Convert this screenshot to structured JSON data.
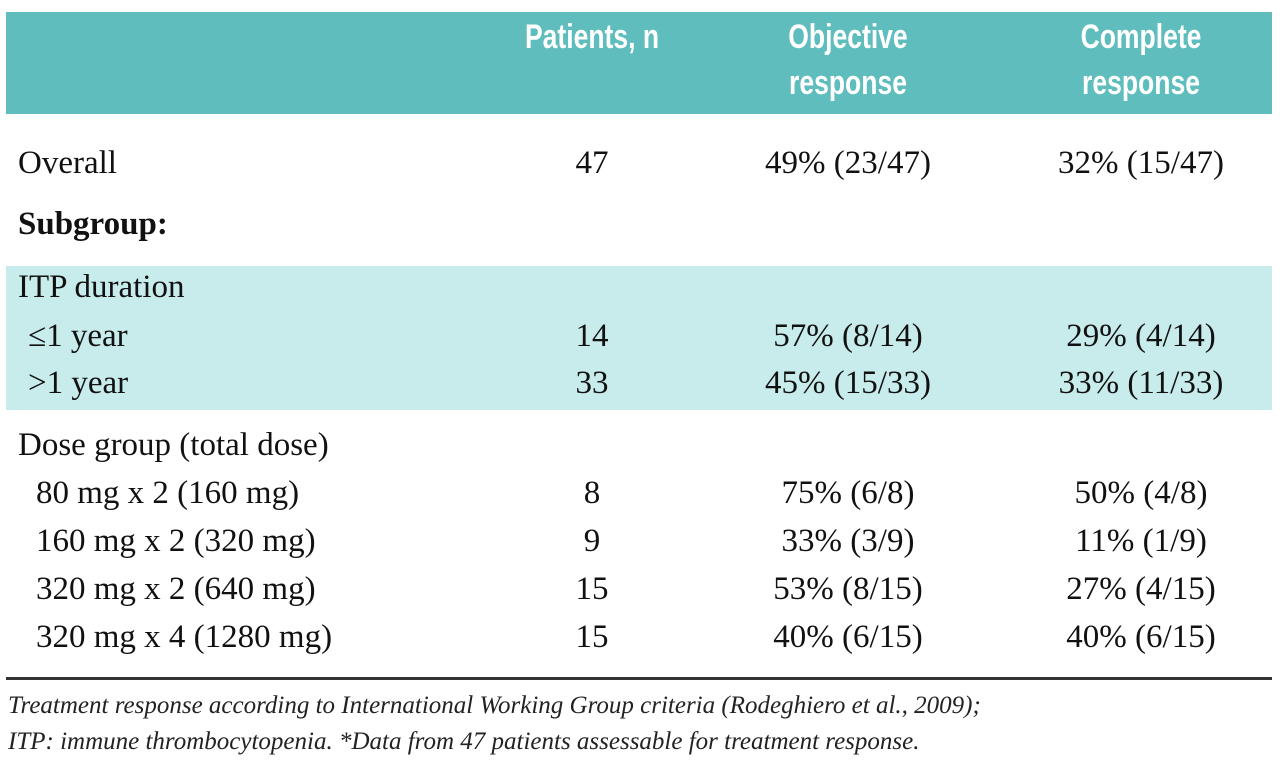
{
  "header": {
    "col_patients": "Patients, n",
    "col_objective": "Objective\nresponse",
    "col_complete": "Complete\nresponse"
  },
  "rows": [
    {
      "label": "Overall",
      "patients": "47",
      "objective": "49% (23/47)",
      "complete": "32% (15/47)"
    },
    {
      "label": "Subgroup:"
    },
    {
      "label": "ITP duration"
    },
    {
      "label": "≤1 year",
      "patients": "14",
      "objective": "57% (8/14)",
      "complete": "29% (4/14)"
    },
    {
      "label": ">1 year",
      "patients": "33",
      "objective": "45% (15/33)",
      "complete": "33% (11/33)"
    },
    {
      "label": "Dose group (total dose)"
    },
    {
      "label": "80 mg x 2 (160 mg)",
      "patients": "8",
      "objective": "75% (6/8)",
      "complete": "50% (4/8)"
    },
    {
      "label": "160 mg x 2 (320 mg)",
      "patients": "9",
      "objective": "33% (3/9)",
      "complete": "11% (1/9)"
    },
    {
      "label": "320 mg x 2 (640 mg)",
      "patients": "15",
      "objective": "53% (8/15)",
      "complete": "27% (4/15)"
    },
    {
      "label": "320 mg x 4 (1280 mg)",
      "patients": "15",
      "objective": "40% (6/15)",
      "complete": "40% (6/15)"
    }
  ],
  "footnote": {
    "line1": "Treatment response according to International Working Group criteria (Rodeghiero et al., 2009);",
    "line2": "ITP: immune thrombocytopenia. *Data from 47 patients assessable for treatment response."
  },
  "colors": {
    "header_bg": "#5fbdbd",
    "band_bg": "#c8ebeb"
  }
}
